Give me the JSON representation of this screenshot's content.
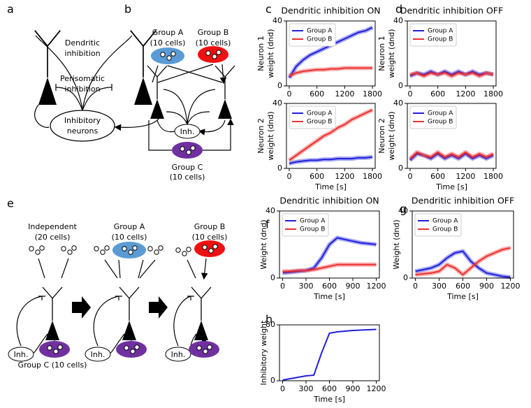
{
  "panel_labels": [
    "a",
    "b",
    "c",
    "d",
    "e",
    "f",
    "g",
    "h"
  ],
  "diagram_a": {
    "dendritic": [
      "Dendritic",
      "inhibition"
    ],
    "perisomatic": [
      "Perisomatic",
      "inhibition"
    ],
    "inhibitory": [
      "Inhibitory",
      "neurons"
    ]
  },
  "diagram_b": {
    "group_a": [
      "Group A",
      "(10 cells)"
    ],
    "group_b": [
      "Group B",
      "(10 cells)"
    ],
    "inh": "Inh.",
    "group_c": [
      "Group C",
      "(10 cells)"
    ]
  },
  "diagram_e": {
    "independent": [
      "Independent",
      "(20 cells)"
    ],
    "group_a": [
      "Group A",
      "(10 cells)"
    ],
    "group_b": [
      "Group B",
      "(10 cells)"
    ],
    "inh": "Inh.",
    "group_c": "Group C (10 cells)"
  },
  "chart_data": [
    {
      "type": "line",
      "title": "Dendritic inhibition ON",
      "ylabel": [
        "Neuron 1",
        "weight (dnd)"
      ],
      "legend": "upper left",
      "x": [
        0,
        150,
        300,
        450,
        600,
        750,
        900,
        1050,
        1200,
        1350,
        1500,
        1650,
        1800
      ],
      "series": [
        {
          "name": "Group A",
          "color": "#2020dd",
          "values": [
            5,
            12,
            16,
            19,
            21,
            23,
            25,
            27,
            29,
            31,
            33,
            34,
            36
          ]
        },
        {
          "name": "Group B",
          "color": "#ee3030",
          "values": [
            6,
            8,
            9,
            9.5,
            10,
            10,
            10.5,
            10.5,
            11,
            11,
            11,
            11,
            11
          ]
        }
      ],
      "xlim": [
        -60,
        1860
      ],
      "ylim": [
        0,
        40
      ],
      "xticks": [
        0,
        600,
        1200,
        1800
      ],
      "yticks": [
        0,
        40
      ]
    },
    {
      "type": "line",
      "ylabel": [
        "Neuron 2",
        "weight (dnd)"
      ],
      "xlabel": "Time [s]",
      "legend": "upper left",
      "x": [
        0,
        150,
        300,
        450,
        600,
        750,
        900,
        1050,
        1200,
        1350,
        1500,
        1650,
        1800
      ],
      "series": [
        {
          "name": "Group A",
          "color": "#2020dd",
          "values": [
            3,
            4,
            4.5,
            5,
            5,
            5.5,
            5.5,
            6,
            6,
            6,
            6.5,
            6.5,
            7
          ]
        },
        {
          "name": "Group B",
          "color": "#ee3030",
          "values": [
            5,
            8,
            11,
            14,
            17,
            20,
            22,
            25,
            27,
            30,
            32,
            34,
            36
          ]
        }
      ],
      "xlim": [
        -60,
        1860
      ],
      "ylim": [
        0,
        40
      ],
      "xticks": [
        0,
        600,
        1200,
        1800
      ],
      "yticks": [
        0,
        40
      ]
    },
    {
      "type": "line",
      "title": "Dendritic inhibition OFF",
      "ylabel": [
        "Neuron 1",
        "weight (dnd)"
      ],
      "legend": "upper left",
      "x": [
        0,
        150,
        300,
        450,
        600,
        750,
        900,
        1050,
        1200,
        1350,
        1500,
        1650,
        1800
      ],
      "series": [
        {
          "name": "Group A",
          "color": "#2020dd",
          "values": [
            6,
            8,
            7,
            9,
            7,
            9,
            7,
            9,
            7,
            9,
            7,
            8,
            7
          ]
        },
        {
          "name": "Group B",
          "color": "#ee3030",
          "values": [
            7,
            8,
            6,
            8,
            7,
            8,
            6,
            8,
            7,
            8,
            6,
            8,
            7
          ]
        }
      ],
      "xlim": [
        -60,
        1860
      ],
      "ylim": [
        0,
        40
      ],
      "xticks": [
        0,
        600,
        1200,
        1800
      ],
      "yticks": [
        0,
        40
      ]
    },
    {
      "type": "line",
      "ylabel": [
        "Neuron 2",
        "weight (dnd)"
      ],
      "xlabel": "Time [s]",
      "legend": "upper left",
      "x": [
        0,
        150,
        300,
        450,
        600,
        750,
        900,
        1050,
        1200,
        1350,
        1500,
        1650,
        1800
      ],
      "series": [
        {
          "name": "Group A",
          "color": "#2020dd",
          "values": [
            5,
            9,
            8,
            6,
            9,
            6,
            8,
            6,
            9,
            6,
            8,
            6,
            8
          ]
        },
        {
          "name": "Group B",
          "color": "#ee3030",
          "values": [
            6,
            10,
            8,
            7,
            10,
            7,
            9,
            7,
            10,
            7,
            9,
            7,
            9
          ]
        }
      ],
      "xlim": [
        -60,
        1860
      ],
      "ylim": [
        0,
        40
      ],
      "xticks": [
        0,
        600,
        1200,
        1800
      ],
      "yticks": [
        0,
        40
      ]
    },
    {
      "type": "line",
      "title": "Dendritic inhibition ON",
      "ylabel": [
        "Weight (dnd)"
      ],
      "xlabel": "Time [s]",
      "legend": "upper left",
      "x": [
        0,
        100,
        200,
        300,
        400,
        500,
        600,
        700,
        800,
        900,
        1000,
        1100,
        1200
      ],
      "series": [
        {
          "name": "Group A",
          "color": "#2020dd",
          "values": [
            3,
            3.5,
            4,
            4.5,
            6,
            12,
            20,
            24,
            23,
            22,
            21,
            20.5,
            20
          ]
        },
        {
          "name": "Group B",
          "color": "#ee3030",
          "values": [
            4,
            4,
            4.5,
            4.5,
            5,
            6,
            7,
            8,
            8,
            8,
            8,
            8,
            8
          ]
        }
      ],
      "xlim": [
        -40,
        1240
      ],
      "ylim": [
        0,
        40
      ],
      "xticks": [
        0,
        300,
        600,
        900,
        1200
      ],
      "yticks": [
        0,
        40
      ]
    },
    {
      "type": "line",
      "title": "Dendritic inhibition OFF",
      "ylabel": [
        "Weight (dnd)"
      ],
      "xlabel": "Time [s]",
      "legend": "upper left",
      "x": [
        0,
        100,
        200,
        300,
        400,
        500,
        600,
        700,
        800,
        900,
        1000,
        1100,
        1200
      ],
      "series": [
        {
          "name": "Group A",
          "color": "#2020dd",
          "values": [
            4,
            5,
            6,
            8,
            12,
            15,
            16,
            10,
            6,
            3,
            2,
            1,
            0.5
          ]
        },
        {
          "name": "Group B",
          "color": "#ee3030",
          "values": [
            2,
            2.5,
            3,
            4,
            8,
            6,
            2,
            6,
            10,
            13,
            15,
            17,
            18
          ]
        }
      ],
      "xlim": [
        -40,
        1240
      ],
      "ylim": [
        0,
        40
      ],
      "xticks": [
        0,
        300,
        600,
        900,
        1200
      ],
      "yticks": [
        0,
        40
      ]
    },
    {
      "type": "line",
      "ylabel": [
        "Inhibitory weight"
      ],
      "xlabel": "Time [s]",
      "color": "#2020dd",
      "x": [
        0,
        100,
        200,
        300,
        400,
        500,
        600,
        700,
        800,
        900,
        1000,
        1100,
        1200
      ],
      "values": [
        1,
        3,
        5,
        7,
        8,
        40,
        68,
        70,
        71,
        72,
        72.5,
        73,
        73.5
      ],
      "xlim": [
        -40,
        1240
      ],
      "ylim": [
        0,
        80
      ],
      "xticks": [
        0,
        300,
        600,
        900,
        1200
      ],
      "yticks": [
        0,
        80
      ]
    }
  ]
}
